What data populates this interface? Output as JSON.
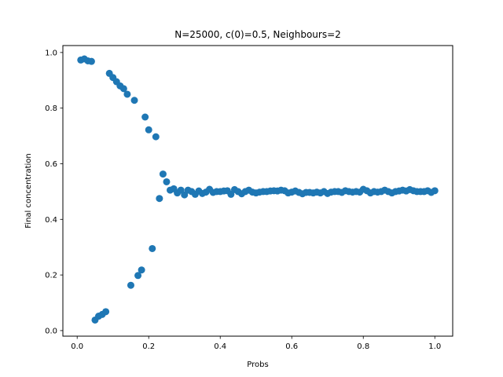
{
  "chart_data": {
    "type": "scatter",
    "title": "N=25000, c(0)=0.5, Neighbours=2",
    "xlabel": "Probs",
    "ylabel": "Final concentration",
    "xlim": [
      -0.04,
      1.05
    ],
    "ylim": [
      -0.02,
      1.025
    ],
    "xticks": [
      0.0,
      0.2,
      0.4,
      0.6,
      0.8,
      1.0
    ],
    "xtick_labels": [
      "0.0",
      "0.2",
      "0.4",
      "0.6",
      "0.8",
      "1.0"
    ],
    "yticks": [
      0.0,
      0.2,
      0.4,
      0.6,
      0.8,
      1.0
    ],
    "ytick_labels": [
      "0.0",
      "0.2",
      "0.4",
      "0.6",
      "0.8",
      "1.0"
    ],
    "grid": false,
    "marker_color": "#1f77b4",
    "series": [
      {
        "x": [
          0.01,
          0.02,
          0.03,
          0.04,
          0.05,
          0.06,
          0.07,
          0.08,
          0.09,
          0.1,
          0.11,
          0.12,
          0.13,
          0.14,
          0.15,
          0.16,
          0.17,
          0.18,
          0.19,
          0.2,
          0.21,
          0.22,
          0.23,
          0.24,
          0.25,
          0.26,
          0.27,
          0.28,
          0.29,
          0.3,
          0.31,
          0.32,
          0.33,
          0.34,
          0.35,
          0.36,
          0.37,
          0.38,
          0.39,
          0.4,
          0.41,
          0.42,
          0.43,
          0.44,
          0.45,
          0.46,
          0.47,
          0.48,
          0.49,
          0.5,
          0.51,
          0.52,
          0.53,
          0.54,
          0.55,
          0.56,
          0.57,
          0.58,
          0.59,
          0.6,
          0.61,
          0.62,
          0.63,
          0.64,
          0.65,
          0.66,
          0.67,
          0.68,
          0.69,
          0.7,
          0.71,
          0.72,
          0.73,
          0.74,
          0.75,
          0.76,
          0.77,
          0.78,
          0.79,
          0.8,
          0.81,
          0.82,
          0.83,
          0.84,
          0.85,
          0.86,
          0.87,
          0.88,
          0.89,
          0.9,
          0.91,
          0.92,
          0.93,
          0.94,
          0.95,
          0.96,
          0.97,
          0.98,
          0.99,
          1.0
        ],
        "y": [
          0.973,
          0.977,
          0.97,
          0.968,
          0.038,
          0.052,
          0.058,
          0.068,
          0.925,
          0.91,
          0.895,
          0.88,
          0.87,
          0.85,
          0.163,
          0.828,
          0.198,
          0.218,
          0.768,
          0.722,
          0.295,
          0.697,
          0.475,
          0.563,
          0.535,
          0.505,
          0.51,
          0.495,
          0.505,
          0.488,
          0.505,
          0.5,
          0.49,
          0.502,
          0.493,
          0.498,
          0.508,
          0.497,
          0.5,
          0.5,
          0.502,
          0.503,
          0.49,
          0.507,
          0.5,
          0.492,
          0.5,
          0.505,
          0.498,
          0.495,
          0.498,
          0.5,
          0.5,
          0.502,
          0.503,
          0.502,
          0.505,
          0.503,
          0.495,
          0.498,
          0.502,
          0.497,
          0.492,
          0.497,
          0.497,
          0.495,
          0.498,
          0.495,
          0.5,
          0.493,
          0.498,
          0.5,
          0.5,
          0.497,
          0.503,
          0.5,
          0.498,
          0.5,
          0.498,
          0.508,
          0.503,
          0.495,
          0.5,
          0.498,
          0.5,
          0.505,
          0.5,
          0.495,
          0.5,
          0.502,
          0.505,
          0.502,
          0.507,
          0.503,
          0.5,
          0.5,
          0.5,
          0.503,
          0.497,
          0.503
        ]
      }
    ]
  }
}
